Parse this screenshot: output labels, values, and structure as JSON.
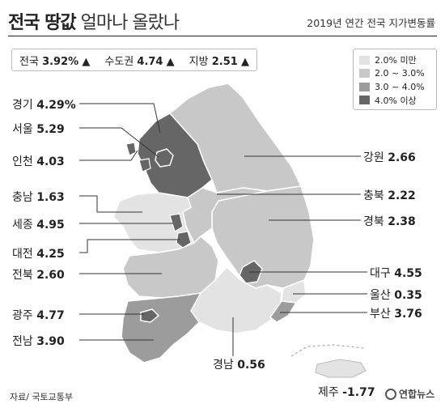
{
  "title_bold": "전국 땅값",
  "title_light": "얼마나 올랐나",
  "subtitle": "2019년 연간 전국 지가변동률",
  "summary": [
    {
      "name": "전국",
      "value": "3.92%"
    },
    {
      "name": "수도권",
      "value": "4.74"
    },
    {
      "name": "지방",
      "value": "2.51"
    }
  ],
  "summary_arrow": "▲",
  "legend": [
    {
      "label": "2.0% 미만",
      "color": "#e3e3e3"
    },
    {
      "label": "2.0 ~ 3.0%",
      "color": "#c8c8c8"
    },
    {
      "label": "3.0 ~ 4.0%",
      "color": "#9c9c9c"
    },
    {
      "label": "4.0% 이상",
      "color": "#666666"
    }
  ],
  "regions": [
    {
      "name": "경기",
      "value": "4.29%",
      "color": "#666666"
    },
    {
      "name": "서울",
      "value": "5.29",
      "color": "#666666"
    },
    {
      "name": "인천",
      "value": "4.03",
      "color": "#666666"
    },
    {
      "name": "충남",
      "value": "1.63",
      "color": "#e3e3e3"
    },
    {
      "name": "세종",
      "value": "4.95",
      "color": "#666666"
    },
    {
      "name": "대전",
      "value": "4.25",
      "color": "#666666"
    },
    {
      "name": "전북",
      "value": "2.60",
      "color": "#c8c8c8"
    },
    {
      "name": "광주",
      "value": "4.77",
      "color": "#666666"
    },
    {
      "name": "전남",
      "value": "3.90",
      "color": "#9c9c9c"
    },
    {
      "name": "강원",
      "value": "2.66",
      "color": "#c8c8c8"
    },
    {
      "name": "충북",
      "value": "2.22",
      "color": "#c8c8c8"
    },
    {
      "name": "경북",
      "value": "2.38",
      "color": "#c8c8c8"
    },
    {
      "name": "대구",
      "value": "4.55",
      "color": "#666666"
    },
    {
      "name": "울산",
      "value": "0.35",
      "color": "#e3e3e3"
    },
    {
      "name": "부산",
      "value": "3.76",
      "color": "#9c9c9c"
    },
    {
      "name": "경남",
      "value": "0.56",
      "color": "#e3e3e3"
    },
    {
      "name": "제주",
      "value": "-1.77",
      "color": "#e3e3e3"
    }
  ],
  "source": "자료/ 국토교통부",
  "logo": "연합뉴스"
}
